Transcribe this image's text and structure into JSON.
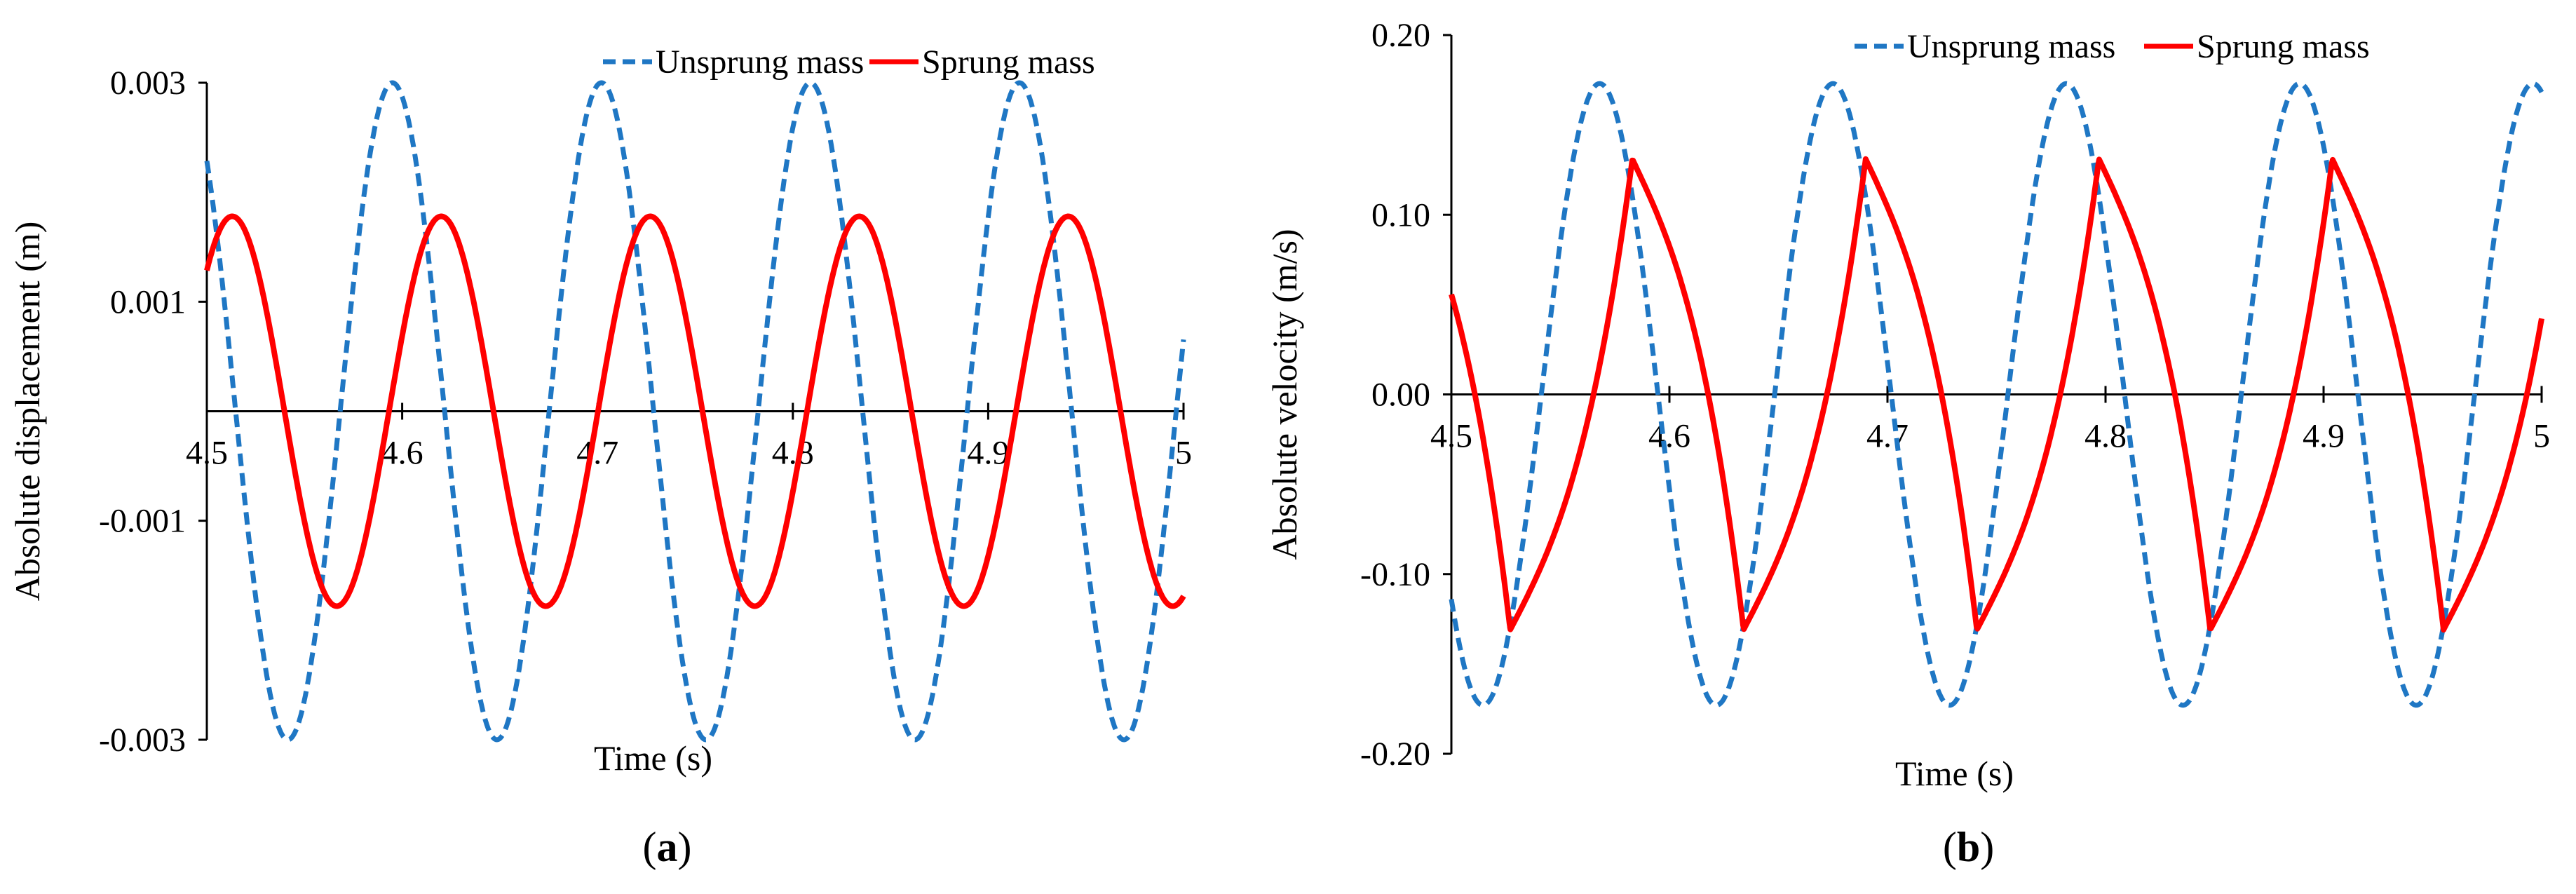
{
  "colors": {
    "unsprung": "#1f77c4",
    "sprung": "#ff0000",
    "axis": "#000000"
  },
  "chart_data": [
    {
      "type": "line",
      "panel_label": "(a)",
      "panel_prefix": "(",
      "panel_letter": "a",
      "panel_suffix": ")",
      "xlabel": "Time (s)",
      "ylabel": "Absolute displacement (m)",
      "xlim": [
        4.5,
        5.0
      ],
      "ylim": [
        -0.003,
        0.003
      ],
      "xticks": [
        4.5,
        4.6,
        4.7,
        4.8,
        4.9,
        5.0
      ],
      "xtick_labels": [
        "4.5",
        "4.6",
        "4.7",
        "4.8",
        "4.9",
        "5"
      ],
      "yticks": [
        0.003,
        0.001,
        -0.001,
        -0.003
      ],
      "ytick_labels": [
        "0.003",
        "0.001",
        "-0.001",
        "-0.003"
      ],
      "legend": [
        "Unsprung mass",
        "Sprung mass"
      ],
      "legend_position": "top-right",
      "series": [
        {
          "name": "Unsprung mass",
          "style": "dashed",
          "model": {
            "kind": "sine",
            "amplitude": 0.003,
            "period": 0.107,
            "peak_time": 4.595,
            "offset": 0
          }
        },
        {
          "name": "Sprung mass",
          "style": "solid",
          "model": {
            "kind": "sine",
            "amplitude": 0.00178,
            "period": 0.107,
            "peak_time": 4.62,
            "offset": 0
          }
        }
      ]
    },
    {
      "type": "line",
      "panel_label": "(b)",
      "panel_prefix": "(",
      "panel_letter": "b",
      "panel_suffix": ")",
      "xlabel": "Time (s)",
      "ylabel": "Absolute velocity (m/s)",
      "xlim": [
        4.5,
        5.0
      ],
      "ylim": [
        -0.2,
        0.2
      ],
      "xticks": [
        4.5,
        4.6,
        4.7,
        4.8,
        4.9,
        5.0
      ],
      "xtick_labels": [
        "4.5",
        "4.6",
        "4.7",
        "4.8",
        "4.9",
        "5"
      ],
      "yticks": [
        0.2,
        0.1,
        0.0,
        -0.1,
        -0.2
      ],
      "ytick_labels": [
        "0.20",
        "0.10",
        "0.00",
        "-0.10",
        "-0.20"
      ],
      "legend": [
        "Unsprung mass",
        "Sprung mass"
      ],
      "legend_position": "top-right",
      "series": [
        {
          "name": "Unsprung mass",
          "style": "dashed",
          "model": {
            "kind": "sine",
            "amplitude": 0.173,
            "period": 0.107,
            "peak_time": 4.568,
            "offset": 0
          }
        },
        {
          "name": "Sprung mass",
          "style": "solid",
          "model": {
            "kind": "cusp",
            "period": 0.107,
            "min_time": 4.527,
            "max_time": 4.583,
            "min_value": -0.131,
            "max_value": 0.131
          }
        }
      ]
    }
  ]
}
